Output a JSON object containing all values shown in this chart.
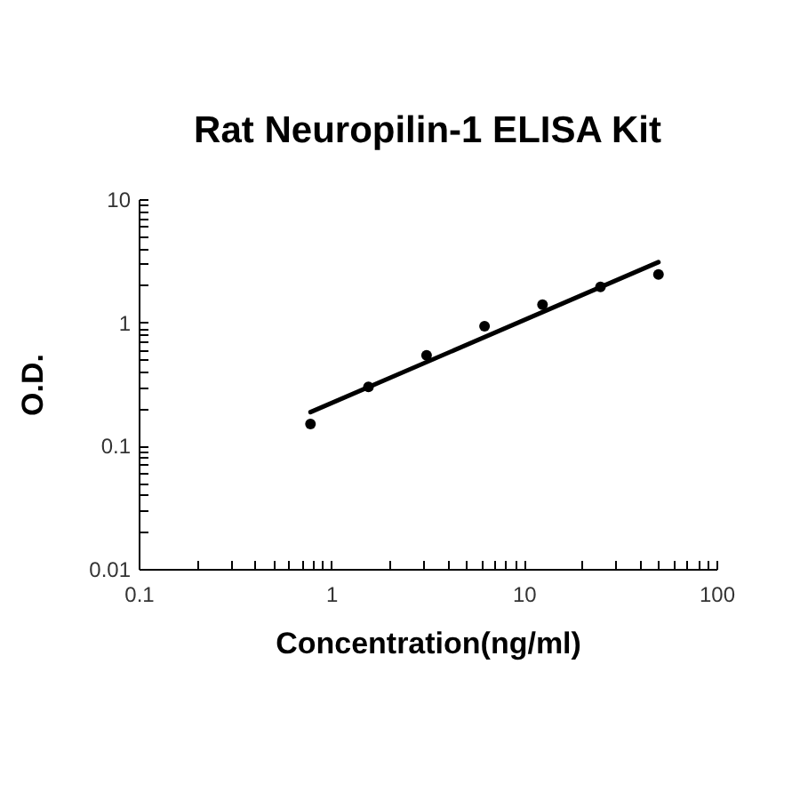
{
  "chart_data": {
    "type": "scatter",
    "title": "Rat Neuropilin-1 ELISA Kit",
    "xlabel": "Concentration(ng/ml)",
    "ylabel": "O.D.",
    "log": "xy",
    "grid": false,
    "marker": "circle",
    "xlim": [
      0.1,
      100
    ],
    "ylim": [
      0.01,
      10
    ],
    "xticks": [
      0.1,
      {
        "value": 0.2,
        "label": null
      },
      {
        "value": 0.3,
        "label": null
      },
      {
        "value": 0.4,
        "label": null
      },
      {
        "value": 0.5,
        "label": null
      },
      {
        "value": 0.6,
        "label": null
      },
      {
        "value": 0.7,
        "label": null
      },
      {
        "value": 0.8,
        "label": null
      },
      {
        "value": 0.9,
        "label": null
      },
      1,
      {
        "value": 2,
        "label": null
      },
      {
        "value": 3,
        "label": null
      },
      {
        "value": 4,
        "label": null
      },
      {
        "value": 5,
        "label": null
      },
      {
        "value": 6,
        "label": null
      },
      {
        "value": 7,
        "label": null
      },
      {
        "value": 8,
        "label": null
      },
      {
        "value": 9,
        "label": null
      },
      10,
      {
        "value": 20,
        "label": null
      },
      {
        "value": 30,
        "label": null
      },
      {
        "value": 40,
        "label": null
      },
      {
        "value": 50,
        "label": null
      },
      {
        "value": 60,
        "label": null
      },
      {
        "value": 70,
        "label": null
      },
      {
        "value": 80,
        "label": null
      },
      {
        "value": 90,
        "label": null
      },
      100
    ],
    "yticks": [
      0.01,
      {
        "value": 0.02,
        "label": null
      },
      {
        "value": 0.03,
        "label": null
      },
      {
        "value": 0.04,
        "label": null
      },
      {
        "value": 0.05,
        "label": null
      },
      {
        "value": 0.06,
        "label": null
      },
      {
        "value": 0.07,
        "label": null
      },
      {
        "value": 0.08,
        "label": null
      },
      {
        "value": 0.09,
        "label": null
      },
      0.1,
      {
        "value": 0.2,
        "label": null
      },
      {
        "value": 0.3,
        "label": null
      },
      {
        "value": 0.4,
        "label": null
      },
      {
        "value": 0.5,
        "label": null
      },
      {
        "value": 0.6,
        "label": null
      },
      {
        "value": 0.7,
        "label": null
      },
      {
        "value": 0.8,
        "label": null
      },
      {
        "value": 0.9,
        "label": null
      },
      1,
      {
        "value": 2,
        "label": null
      },
      {
        "value": 3,
        "label": null
      },
      {
        "value": 4,
        "label": null
      },
      {
        "value": 5,
        "label": null
      },
      {
        "value": 6,
        "label": null
      },
      {
        "value": 7,
        "label": null
      },
      {
        "value": 8,
        "label": null
      },
      {
        "value": 9,
        "label": null
      },
      10
    ],
    "series": [
      {
        "color": "#000000",
        "x": [
          0.78,
          1.56,
          3.125,
          6.25,
          12.5,
          25,
          50
        ],
        "values": [
          0.15,
          0.3,
          0.54,
          0.93,
          1.39,
          1.94,
          2.45
        ]
      },
      {
        "type": "line",
        "color": "#000000",
        "marker": "none",
        "x": [
          0.78,
          50
        ],
        "values": [
          0.187,
          3.08
        ]
      }
    ]
  }
}
